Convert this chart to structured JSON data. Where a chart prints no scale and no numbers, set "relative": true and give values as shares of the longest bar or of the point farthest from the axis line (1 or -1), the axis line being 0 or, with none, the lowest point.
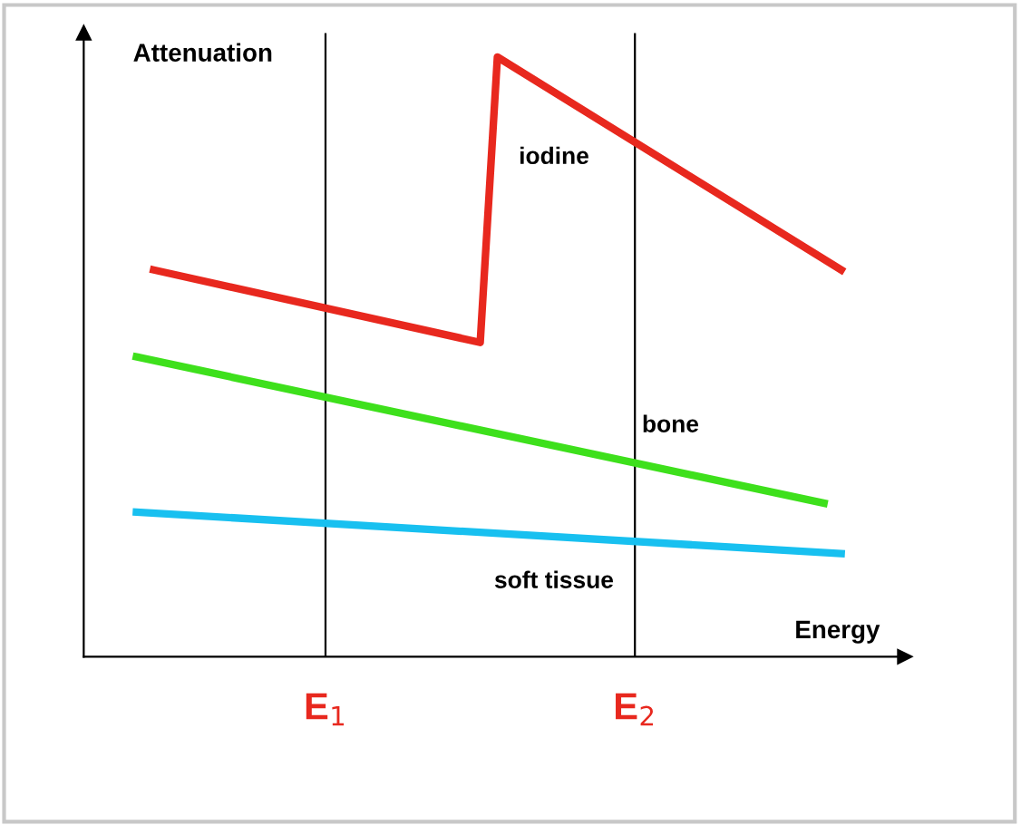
{
  "chart_data": {
    "type": "line",
    "relative": true,
    "xlabel": "Energy",
    "ylabel": "Attenuation",
    "categories": [
      null,
      null,
      null,
      null,
      null,
      null,
      null,
      null,
      null,
      null,
      null,
      "E$_{1}$",
      null,
      null,
      null,
      null,
      null,
      null,
      null,
      null,
      null,
      null,
      null,
      null,
      null,
      null,
      null,
      null,
      null,
      "E$_{2}$",
      null,
      null,
      null,
      null,
      null,
      null,
      null,
      null,
      null,
      null,
      null,
      null
    ],
    "series": [
      {
        "name": "iodine",
        "color": "#e8281e",
        "values": [
          null,
          0.645,
          null,
          null,
          null,
          null,
          null,
          null,
          null,
          null,
          null,
          null,
          null,
          null,
          null,
          null,
          null,
          null,
          null,
          null,
          0.524,
          1.0,
          null,
          null,
          null,
          null,
          null,
          null,
          null,
          null,
          null,
          null,
          null,
          null,
          null,
          null,
          null,
          null,
          null,
          null,
          null,
          0.645
        ]
      },
      {
        "name": "bone",
        "color": "#3ee01c",
        "values": [
          0.5,
          null,
          null,
          null,
          null,
          null,
          null,
          null,
          null,
          null,
          null,
          null,
          null,
          null,
          null,
          null,
          null,
          null,
          null,
          null,
          null,
          null,
          null,
          null,
          null,
          null,
          null,
          null,
          null,
          null,
          null,
          null,
          null,
          null,
          null,
          null,
          null,
          null,
          null,
          null,
          0.256,
          null
        ]
      },
      {
        "name": "soft tissue",
        "color": "#18c0f0",
        "values": [
          0.241,
          null,
          null,
          null,
          null,
          null,
          null,
          null,
          null,
          null,
          null,
          null,
          null,
          null,
          null,
          null,
          null,
          null,
          null,
          null,
          null,
          null,
          null,
          null,
          null,
          null,
          null,
          null,
          null,
          null,
          null,
          null,
          null,
          null,
          null,
          null,
          null,
          null,
          null,
          null,
          null,
          0.172
        ]
      }
    ],
    "grid": "x",
    "legend": false,
    "marker": "none",
    "line_style": "solid"
  }
}
